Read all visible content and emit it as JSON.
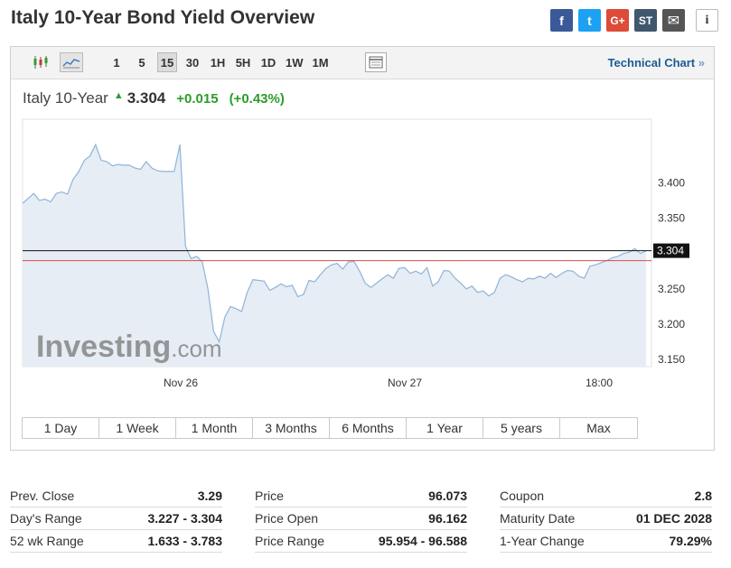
{
  "page": {
    "title": "Italy 10-Year Bond Yield Overview"
  },
  "share": [
    {
      "name": "facebook",
      "glyph": "f",
      "color": "#3b5998"
    },
    {
      "name": "twitter",
      "glyph": "t",
      "color": "#1da1f2"
    },
    {
      "name": "google-plus",
      "glyph": "G+",
      "color": "#dd4b39"
    },
    {
      "name": "stocktwits",
      "glyph": "ST",
      "color": "#40576d"
    },
    {
      "name": "email",
      "glyph": "✉",
      "color": "#555555"
    },
    {
      "name": "info",
      "glyph": "i",
      "color": "#ffffff"
    }
  ],
  "toolbar": {
    "intervals": [
      {
        "label": "1",
        "active": false
      },
      {
        "label": "5",
        "active": false
      },
      {
        "label": "15",
        "active": true
      },
      {
        "label": "30",
        "active": false
      },
      {
        "label": "1H",
        "active": false
      },
      {
        "label": "5H",
        "active": false
      },
      {
        "label": "1D",
        "active": false
      },
      {
        "label": "1W",
        "active": false
      },
      {
        "label": "1M",
        "active": false
      }
    ],
    "technical_chart_label": "Technical Chart",
    "technical_chart_arrow": "»",
    "icons": [
      "candlestick-icon",
      "area-chart-icon",
      "calendar-icon"
    ]
  },
  "quote": {
    "name": "Italy 10-Year",
    "arrow": "▲",
    "last": "3.304",
    "change": "+0.015",
    "change_pct": "(+0.43%)"
  },
  "watermark": {
    "brand": "Investing",
    "suffix": ".com"
  },
  "chart_data": {
    "type": "area",
    "x_ticks": [
      "Nov 26",
      "Nov 27",
      "18:00"
    ],
    "y_ticks": [
      "3.400",
      "3.350",
      "3.250",
      "3.200",
      "3.150"
    ],
    "ylim": [
      3.14,
      3.49
    ],
    "last_value": 3.304,
    "last_value_label": "3.304",
    "prev_close": 3.29,
    "colors": {
      "line": "#8fb3d9",
      "fill": "#e6edf5",
      "last_line": "#111111",
      "prev_close_line": "#d94c4c"
    },
    "values": [
      3.371,
      3.378,
      3.385,
      3.375,
      3.377,
      3.373,
      3.385,
      3.387,
      3.384,
      3.405,
      3.416,
      3.432,
      3.438,
      3.454,
      3.432,
      3.43,
      3.424,
      3.426,
      3.425,
      3.425,
      3.421,
      3.419,
      3.43,
      3.421,
      3.417,
      3.416,
      3.416,
      3.416,
      3.454,
      3.31,
      3.293,
      3.296,
      3.288,
      3.25,
      3.19,
      3.175,
      3.21,
      3.225,
      3.222,
      3.218,
      3.245,
      3.263,
      3.262,
      3.261,
      3.248,
      3.252,
      3.257,
      3.253,
      3.255,
      3.239,
      3.242,
      3.262,
      3.26,
      3.27,
      3.279,
      3.284,
      3.286,
      3.278,
      3.288,
      3.289,
      3.275,
      3.258,
      3.252,
      3.258,
      3.264,
      3.27,
      3.265,
      3.279,
      3.28,
      3.272,
      3.275,
      3.271,
      3.28,
      3.254,
      3.26,
      3.276,
      3.275,
      3.265,
      3.258,
      3.25,
      3.254,
      3.245,
      3.247,
      3.24,
      3.245,
      3.265,
      3.27,
      3.267,
      3.263,
      3.26,
      3.265,
      3.264,
      3.268,
      3.265,
      3.272,
      3.266,
      3.272,
      3.276,
      3.275,
      3.268,
      3.265,
      3.282,
      3.284,
      3.287,
      3.29,
      3.294,
      3.296,
      3.3,
      3.302,
      3.307,
      3.3,
      3.304
    ]
  },
  "ranges": [
    "1 Day",
    "1 Week",
    "1 Month",
    "3 Months",
    "6 Months",
    "1 Year",
    "5 years",
    "Max"
  ],
  "stats": [
    [
      {
        "label": "Prev. Close",
        "value": "3.29"
      },
      {
        "label": "Day's Range",
        "value": "3.227 - 3.304"
      },
      {
        "label": "52 wk Range",
        "value": "1.633 - 3.783"
      }
    ],
    [
      {
        "label": "Price",
        "value": "96.073"
      },
      {
        "label": "Price Open",
        "value": "96.162"
      },
      {
        "label": "Price Range",
        "value": "95.954 - 96.588"
      }
    ],
    [
      {
        "label": "Coupon",
        "value": "2.8"
      },
      {
        "label": "Maturity Date",
        "value": "01 DEC 2028"
      },
      {
        "label": "1-Year Change",
        "value": "79.29%"
      }
    ]
  ]
}
